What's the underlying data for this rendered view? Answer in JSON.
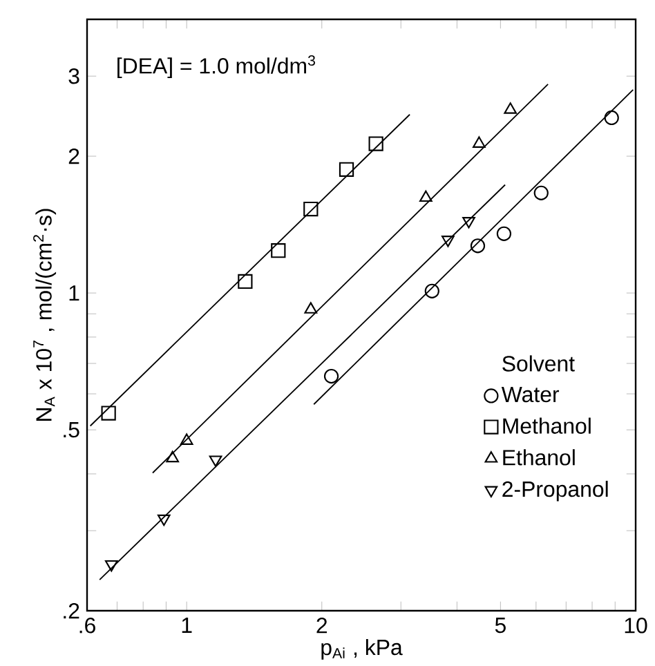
{
  "chart_data": {
    "type": "scatter",
    "xlabel": "p$_{Ai}$ ,  kPa",
    "ylabel": "N$_{A}$ x 10$^{7}$ ,   mol/(cm$^{2}$·s)",
    "annotations": [
      "[DEA] = 1.0 mol/dm$^{3}$"
    ],
    "legend_title": "Solvent",
    "legend": "right",
    "log": "xy",
    "grid": false,
    "xlim": [
      0.6,
      10
    ],
    "ylim": [
      0.2,
      4
    ],
    "xticks": [
      {
        "value": 0.6,
        "label": ".6"
      },
      {
        "value": 0.7,
        "label": null
      },
      {
        "value": 0.8,
        "label": null
      },
      {
        "value": 0.9,
        "label": null
      },
      1,
      2,
      {
        "value": 3,
        "label": null
      },
      {
        "value": 4,
        "label": null
      },
      5,
      {
        "value": 6,
        "label": null
      },
      {
        "value": 7,
        "label": null
      },
      {
        "value": 8,
        "label": null
      },
      {
        "value": 9,
        "label": null
      },
      10
    ],
    "yticks": [
      {
        "value": 0.2,
        "label": ".2"
      },
      {
        "value": 0.3,
        "label": null
      },
      {
        "value": 0.4,
        "label": null
      },
      {
        "value": 0.5,
        "label": ".5"
      },
      {
        "value": 0.6,
        "label": null
      },
      {
        "value": 0.7,
        "label": null
      },
      {
        "value": 0.8,
        "label": null
      },
      {
        "value": 0.9,
        "label": null
      },
      1,
      2,
      3
    ],
    "series": [
      {
        "name": "Water",
        "color": "#000000",
        "marker": "circle",
        "x": [
          2.1,
          3.52,
          4.45,
          5.09,
          6.16,
          8.84
        ],
        "values": [
          0.656,
          1.01,
          1.27,
          1.35,
          1.66,
          2.43
        ]
      },
      {
        "name": "Methanol",
        "color": "#000000",
        "marker": "square",
        "x": [
          0.67,
          1.35,
          1.6,
          1.89,
          2.27,
          2.64
        ],
        "values": [
          0.544,
          1.06,
          1.24,
          1.53,
          1.87,
          2.13
        ]
      },
      {
        "name": "Ethanol",
        "color": "#000000",
        "marker": "triangle",
        "x": [
          0.93,
          1.0,
          1.89,
          3.41,
          4.48,
          5.26
        ],
        "values": [
          0.433,
          0.473,
          0.92,
          1.62,
          2.13,
          2.53
        ]
      },
      {
        "name": "2-Propanol",
        "color": "#000000",
        "marker": "triangle-down",
        "x": [
          0.68,
          0.89,
          1.16,
          3.82,
          4.25
        ],
        "values": [
          0.253,
          0.319,
          0.43,
          1.31,
          1.44
        ]
      },
      {
        "type": "line",
        "color": "#000000",
        "line_style": "solid",
        "x": [
          1.92,
          9.87
        ],
        "values": [
          0.569,
          2.8
        ]
      },
      {
        "type": "line",
        "color": "#000000",
        "line_style": "solid",
        "x": [
          0.61,
          3.14
        ],
        "values": [
          0.51,
          2.47
        ]
      },
      {
        "type": "line",
        "color": "#000000",
        "line_style": "solid",
        "x": [
          0.84,
          6.38
        ],
        "values": [
          0.402,
          2.88
        ]
      },
      {
        "type": "line",
        "color": "#000000",
        "line_style": "solid",
        "x": [
          0.64,
          5.12
        ],
        "values": [
          0.234,
          1.73
        ]
      }
    ]
  }
}
